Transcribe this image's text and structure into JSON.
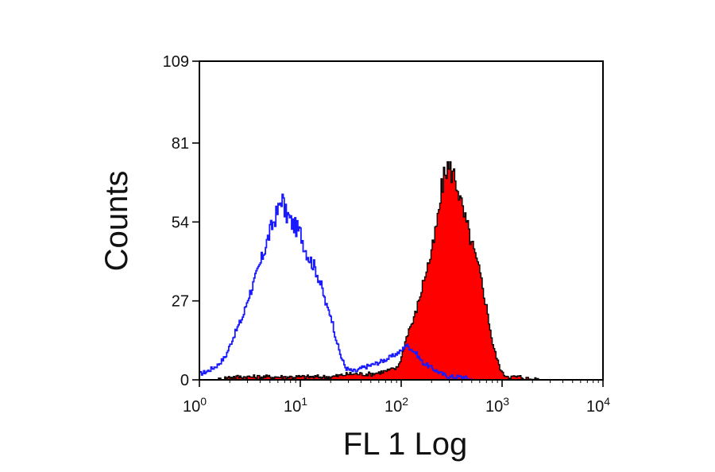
{
  "chart_data": {
    "type": "area",
    "xlabel": "FL 1 Log",
    "ylabel": "Counts",
    "x_scale": "log",
    "xlim": [
      1,
      10000
    ],
    "ylim": [
      0,
      109
    ],
    "x_ticks": [
      {
        "value": 1,
        "base": "10",
        "exp": "0"
      },
      {
        "value": 10,
        "base": "10",
        "exp": "1"
      },
      {
        "value": 100,
        "base": "10",
        "exp": "2"
      },
      {
        "value": 1000,
        "base": "10",
        "exp": "3"
      },
      {
        "value": 10000,
        "base": "10",
        "exp": "4"
      }
    ],
    "y_ticks": [
      0,
      27,
      54,
      81,
      109
    ],
    "grid": false,
    "series": [
      {
        "style": "outline",
        "color": "#1a1aff",
        "x": [
          1.0,
          1.2,
          1.5,
          1.8,
          2.0,
          2.3,
          2.7,
          3.0,
          3.5,
          4.0,
          4.5,
          5.0,
          5.5,
          6.0,
          6.5,
          7.0,
          7.5,
          8.0,
          9.0,
          10.0,
          11.0,
          12.0,
          14.0,
          16.0,
          18.0,
          20.0,
          22.0,
          25.0,
          28.0,
          32.0,
          36.0,
          40.0,
          50.0,
          60.0,
          70.0,
          80.0,
          90.0,
          100.0,
          110.0,
          120.0,
          140.0,
          160.0,
          200.0,
          250.0,
          300.0,
          400.0,
          500.0
        ],
        "y": [
          2,
          3,
          5,
          8,
          12,
          17,
          22,
          28,
          34,
          40,
          46,
          51,
          55,
          58,
          63,
          57,
          56,
          54,
          52,
          50,
          45,
          42,
          38,
          32,
          25,
          22,
          15,
          8,
          4,
          3,
          3,
          4,
          5,
          6,
          7,
          8,
          9,
          10,
          12,
          11,
          9,
          6,
          4,
          2,
          1,
          1,
          0
        ]
      },
      {
        "style": "filled",
        "color": "#ff0000",
        "outline": "#000000",
        "x": [
          1.5,
          2.0,
          3.0,
          5.0,
          10.0,
          20.0,
          30.0,
          50.0,
          70.0,
          90.0,
          100.0,
          110.0,
          120.0,
          130.0,
          150.0,
          170.0,
          200.0,
          230.0,
          250.0,
          280.0,
          300.0,
          330.0,
          360.0,
          400.0,
          450.0,
          500.0,
          600.0,
          700.0,
          800.0,
          900.0,
          1000.0,
          1200.0,
          1500.0,
          2000.0,
          2500.0
        ],
        "y": [
          0,
          1,
          1,
          1,
          1,
          1,
          2,
          2,
          3,
          4,
          8,
          14,
          18,
          20,
          28,
          36,
          44,
          56,
          66,
          73,
          72,
          70,
          66,
          58,
          52,
          46,
          36,
          24,
          12,
          6,
          2,
          1,
          1,
          0,
          0
        ]
      }
    ]
  }
}
